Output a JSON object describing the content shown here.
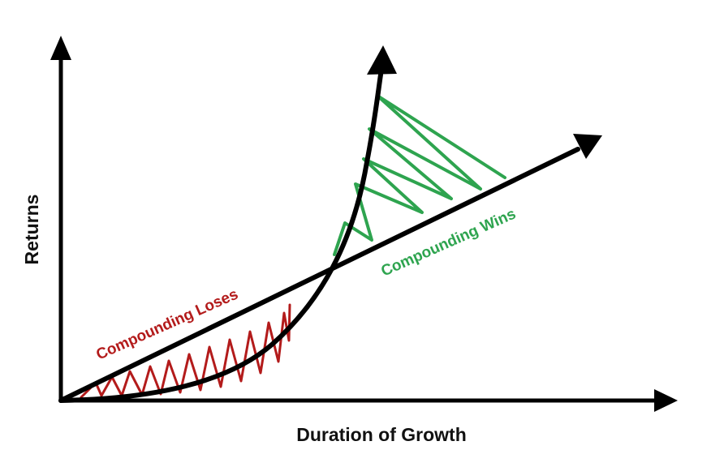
{
  "diagram": {
    "x_axis_label": "Duration of Growth",
    "y_axis_label": "Returns",
    "region_loses": {
      "label": "Compounding Loses",
      "color": "#b31b1b"
    },
    "region_wins": {
      "label": "Compounding Wins",
      "color": "#2ea44f"
    },
    "line_color": "#000000"
  }
}
